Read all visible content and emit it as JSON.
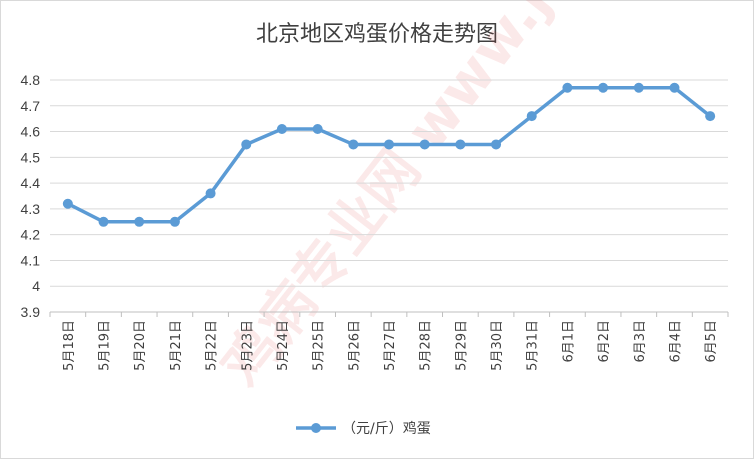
{
  "chart_data": {
    "type": "line",
    "title": "北京地区鸡蛋价格走势图",
    "categories": [
      "5月18日",
      "5月19日",
      "5月20日",
      "5月21日",
      "5月22日",
      "5月23日",
      "5月24日",
      "5月25日",
      "5月26日",
      "5月27日",
      "5月28日",
      "5月29日",
      "5月30日",
      "5月31日",
      "6月1日",
      "6月2日",
      "6月3日",
      "6月4日",
      "6月5日"
    ],
    "series": [
      {
        "name": "（元/斤）鸡蛋",
        "values": [
          4.32,
          4.25,
          4.25,
          4.25,
          4.36,
          4.55,
          4.61,
          4.61,
          4.55,
          4.55,
          4.55,
          4.55,
          4.55,
          4.66,
          4.77,
          4.77,
          4.77,
          4.77,
          4.66
        ]
      }
    ],
    "ylim": [
      3.9,
      4.8
    ],
    "yticks": [
      "3.9",
      "4",
      "4.1",
      "4.2",
      "4.3",
      "4.4",
      "4.5",
      "4.6",
      "4.7",
      "4.8"
    ],
    "grid": true,
    "legend": "bottom",
    "color": "#5b9bd5",
    "watermark": "鸡病专业网 www.jbzyw.com"
  }
}
